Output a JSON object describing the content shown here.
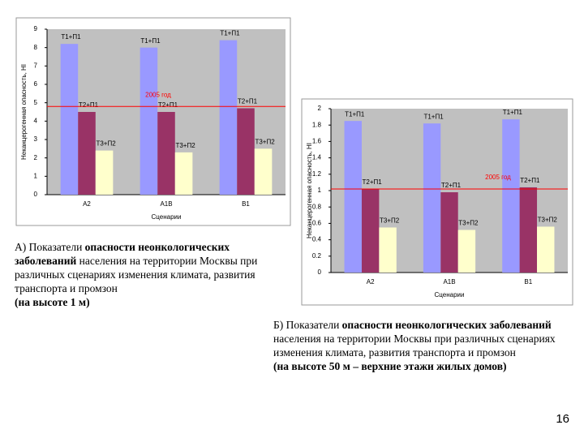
{
  "chart_data": [
    {
      "type": "bar",
      "xlabel": "Сценарии",
      "ylabel": "Неканцерогенная опасность, HI",
      "categories": [
        "A2",
        "A1B",
        "B1"
      ],
      "series": [
        {
          "name": "T1+П1",
          "color": "#9999ff",
          "values": [
            8.2,
            8.0,
            8.4
          ]
        },
        {
          "name": "T2+П1",
          "color": "#993366",
          "values": [
            4.5,
            4.5,
            4.7
          ]
        },
        {
          "name": "T3+П2",
          "color": "#ffffcc",
          "values": [
            2.4,
            2.3,
            2.5
          ]
        }
      ],
      "reference": {
        "label": "2005 год",
        "value": 4.8,
        "color": "#ff0000"
      },
      "ylim": [
        0,
        9
      ],
      "yticks": [
        0,
        1,
        2,
        3,
        4,
        5,
        6,
        7,
        8,
        9
      ]
    },
    {
      "type": "bar",
      "xlabel": "Сценарии",
      "ylabel": "Неканцерогенная опасность, HI",
      "categories": [
        "A2",
        "A1B",
        "B1"
      ],
      "series": [
        {
          "name": "T1+П1",
          "color": "#9999ff",
          "values": [
            1.85,
            1.82,
            1.87
          ]
        },
        {
          "name": "T2+П1",
          "color": "#993366",
          "values": [
            1.02,
            0.98,
            1.04
          ]
        },
        {
          "name": "T3+П2",
          "color": "#ffffcc",
          "values": [
            0.55,
            0.52,
            0.56
          ]
        }
      ],
      "reference": {
        "label": "2005 год",
        "value": 1.02,
        "color": "#ff0000"
      },
      "ylim": [
        0,
        2
      ],
      "yticks": [
        0,
        0.2,
        0.4,
        0.6,
        0.8,
        1,
        1.2,
        1.4,
        1.6,
        1.8,
        2
      ]
    }
  ],
  "caption_a": [
    "А) Показатели ",
    "опасности неонкологических заболеваний",
    " населения на территории Москвы при различных сценариях изменения климата, развития транспорта и промзон",
    "(на высоте 1 м)"
  ],
  "caption_b": [
    "Б) Показатели ",
    "опасности неонкологических заболеваний",
    " населения на территории Москвы при различных сценариях изменения климата, развития транспорта и промзон",
    "(на высоте 50 м – верхние этажи жилых домов)"
  ],
  "page_number": "16"
}
